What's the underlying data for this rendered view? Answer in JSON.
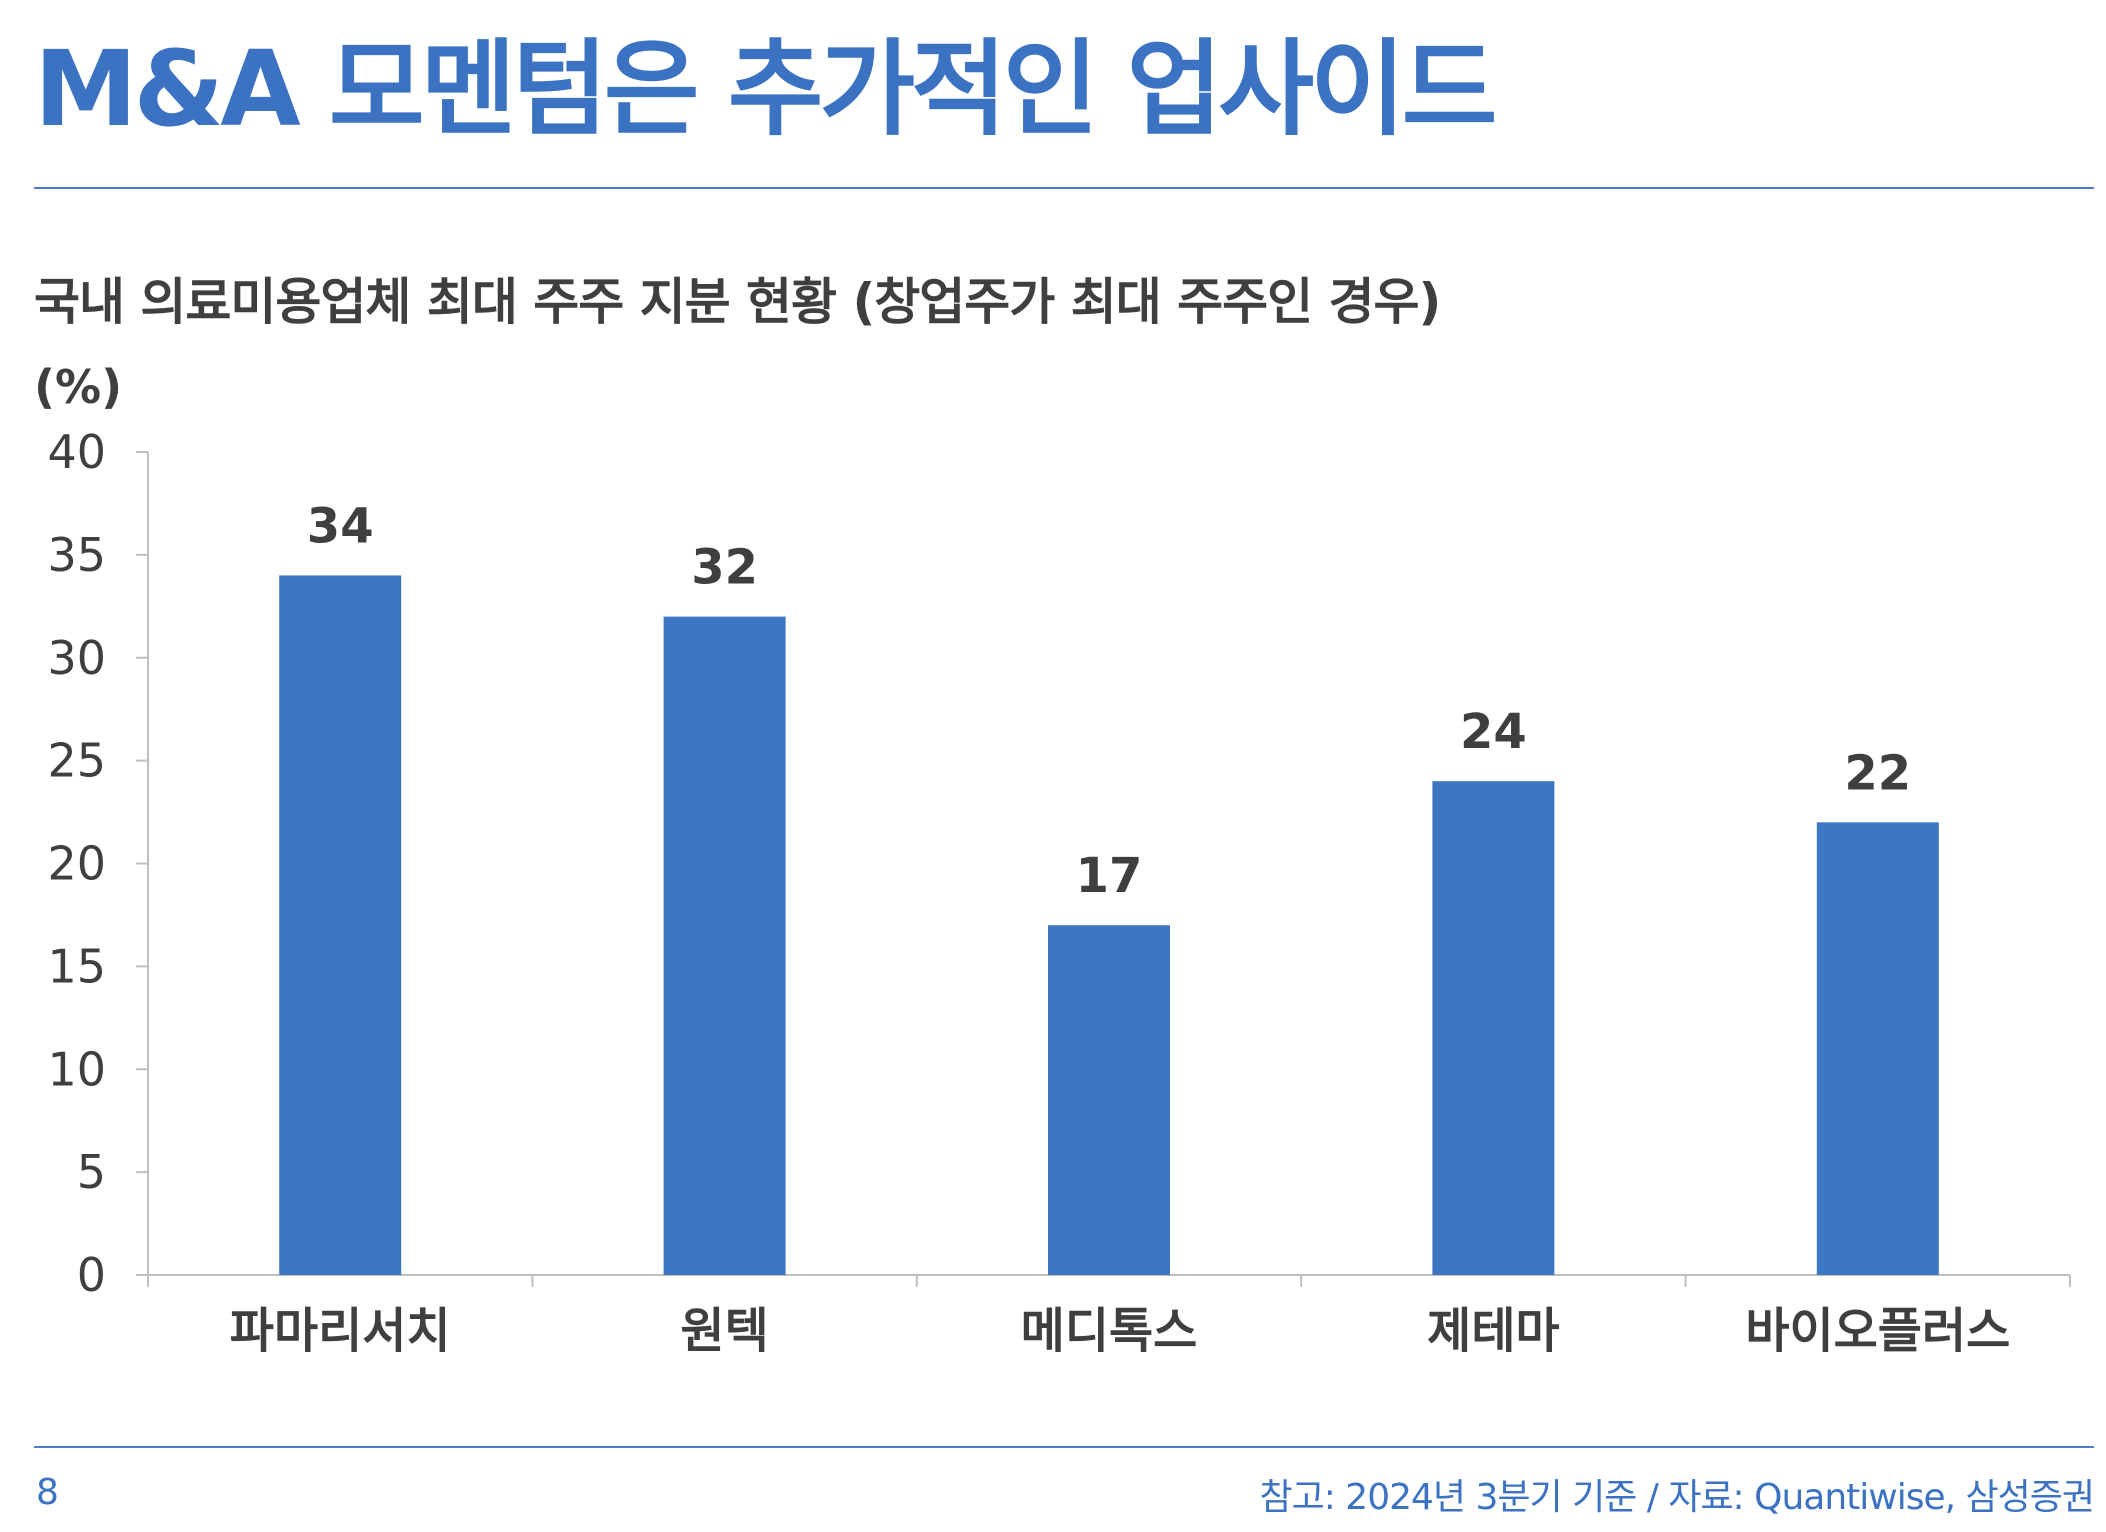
{
  "page": {
    "title": "M&A 모멘텀은 추가적인 업사이드",
    "page_number": "8",
    "source_note": "참고: 2024년 3분기 기준 / 자료: Quantiwise, 삼성증권"
  },
  "colors": {
    "accent": "#3b72c2",
    "bar": "#3d76c2",
    "text_dark": "#3f3f3f",
    "axis": "#bfbfbf"
  },
  "chart_data": {
    "type": "bar",
    "title": "국내 의료미용업체 최대 주주 지분 현황 (창업주가 최대 주주인 경우)",
    "ylabel": "(%)",
    "xlabel": "",
    "categories": [
      "파마리서치",
      "원텍",
      "메디톡스",
      "제테마",
      "바이오플러스"
    ],
    "values": [
      34,
      32,
      17,
      24,
      22
    ],
    "value_labels": [
      "34",
      "32",
      "17",
      "24",
      "22"
    ],
    "ylim": [
      0,
      40
    ],
    "yticks": [
      0,
      5,
      10,
      15,
      20,
      25,
      30,
      35,
      40
    ],
    "grid": false,
    "legend": "none"
  }
}
